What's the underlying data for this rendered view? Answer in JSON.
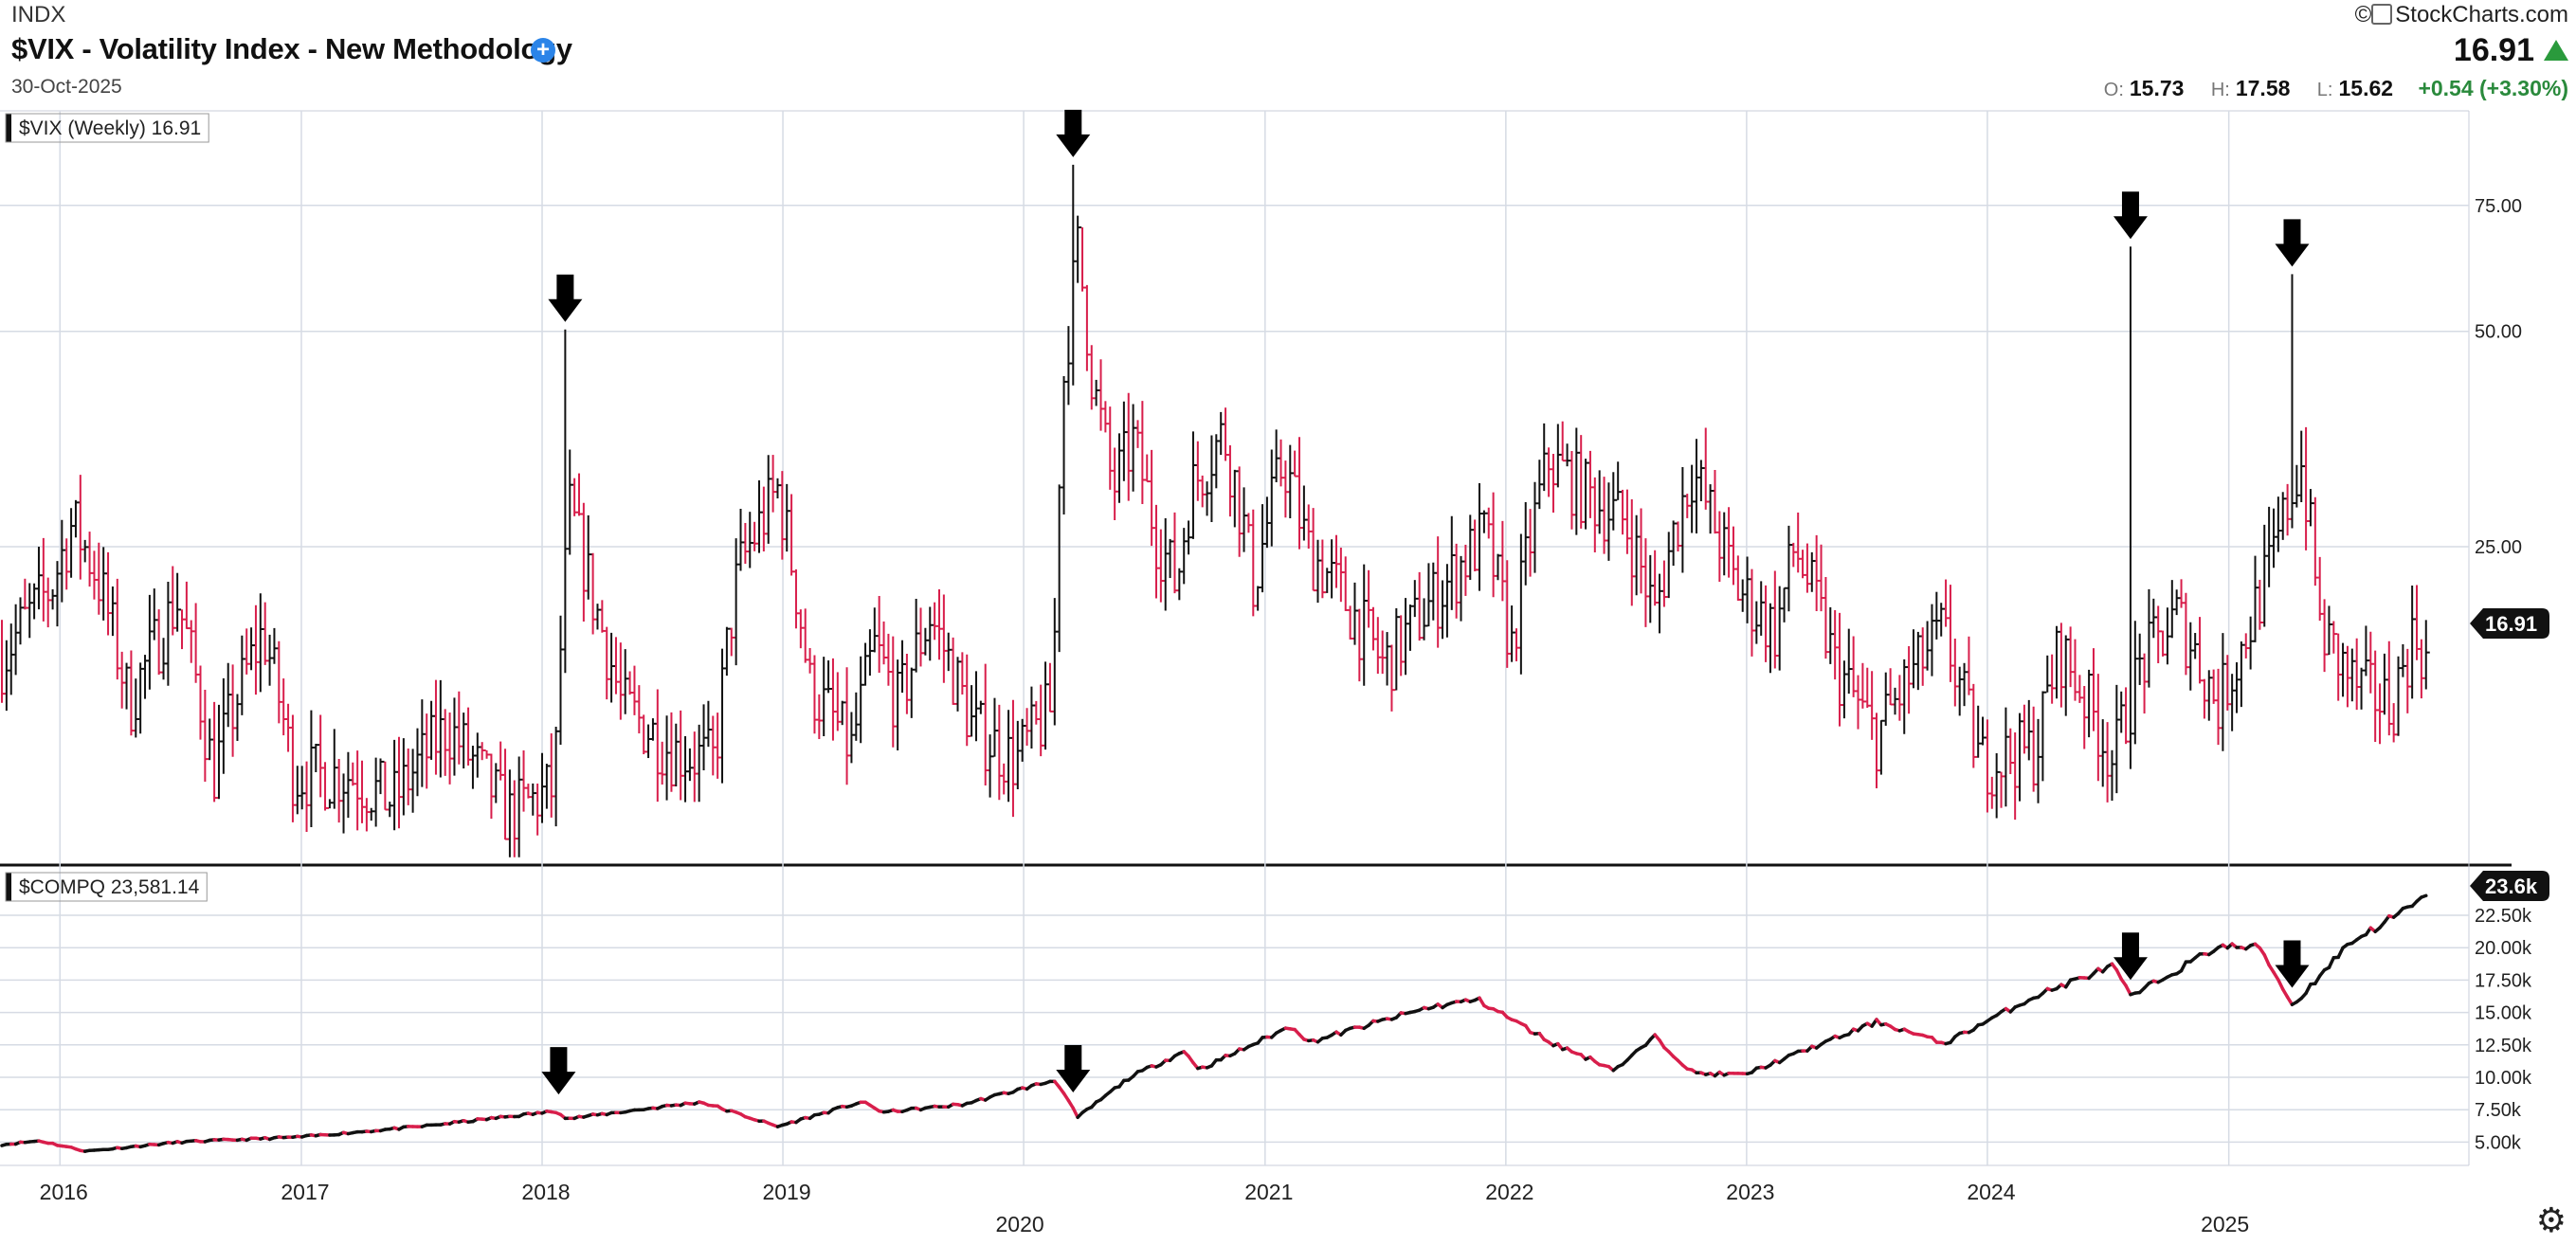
{
  "header": {
    "exchange": "INDX",
    "title": "$VIX - Volatility Index - New Methodology",
    "plus_icon": "plus-circle-icon",
    "date": "30-Oct-2025",
    "brand": "StockCharts.com",
    "last_price": "16.91",
    "open_label": "O:",
    "open": "15.73",
    "high_label": "H:",
    "high": "17.58",
    "low_label": "L:",
    "low": "15.62",
    "change": "+0.54 (+3.30%)"
  },
  "colors": {
    "up": "#111111",
    "down": "#d81e4b",
    "grid": "#d6dbe4",
    "accent_up": "#2a9a3c"
  },
  "chart_data": [
    {
      "type": "bar",
      "name": "vix-weekly-hlc",
      "legend": "$VIX (Weekly) 16.91",
      "last_label": "16.91",
      "y_scale": "log",
      "yticks": [
        25,
        50,
        75
      ],
      "ytick_labels": [
        "25.00",
        "50.00",
        "75.00"
      ],
      "ylim": [
        9,
        90
      ],
      "x_range": [
        "2015-10-05",
        "2025-12-31"
      ],
      "spikes": [
        {
          "date": "2018-02-05",
          "value": 50.3
        },
        {
          "date": "2020-03-16",
          "value": 85.5
        },
        {
          "date": "2024-08-05",
          "value": 65.7
        },
        {
          "date": "2025-04-07",
          "value": 60.1
        }
      ],
      "anchors": [
        {
          "date": "2015-10-05",
          "value": 17.5
        },
        {
          "date": "2015-11-15",
          "value": 20
        },
        {
          "date": "2015-12-20",
          "value": 22
        },
        {
          "date": "2016-01-20",
          "value": 27
        },
        {
          "date": "2016-02-25",
          "value": 23
        },
        {
          "date": "2016-04-15",
          "value": 15
        },
        {
          "date": "2016-06-27",
          "value": 21
        },
        {
          "date": "2016-08-20",
          "value": 12
        },
        {
          "date": "2016-11-04",
          "value": 19
        },
        {
          "date": "2016-12-20",
          "value": 12
        },
        {
          "date": "2017-03-15",
          "value": 12
        },
        {
          "date": "2017-05-20",
          "value": 11
        },
        {
          "date": "2017-08-10",
          "value": 14
        },
        {
          "date": "2017-11-10",
          "value": 10.5
        },
        {
          "date": "2018-01-20",
          "value": 11.5
        },
        {
          "date": "2018-02-12",
          "value": 28
        },
        {
          "date": "2018-03-20",
          "value": 21
        },
        {
          "date": "2018-05-01",
          "value": 15
        },
        {
          "date": "2018-07-15",
          "value": 13
        },
        {
          "date": "2018-09-20",
          "value": 12.5
        },
        {
          "date": "2018-10-25",
          "value": 23
        },
        {
          "date": "2018-12-24",
          "value": 30
        },
        {
          "date": "2019-02-10",
          "value": 16
        },
        {
          "date": "2019-04-15",
          "value": 13
        },
        {
          "date": "2019-05-20",
          "value": 18
        },
        {
          "date": "2019-06-25",
          "value": 15
        },
        {
          "date": "2019-08-12",
          "value": 20
        },
        {
          "date": "2019-10-15",
          "value": 14
        },
        {
          "date": "2019-12-20",
          "value": 12.5
        },
        {
          "date": "2020-02-15",
          "value": 15
        },
        {
          "date": "2020-02-28",
          "value": 40
        },
        {
          "date": "2020-03-23",
          "value": 65
        },
        {
          "date": "2020-04-15",
          "value": 42
        },
        {
          "date": "2020-05-15",
          "value": 30
        },
        {
          "date": "2020-06-15",
          "value": 35
        },
        {
          "date": "2020-07-20",
          "value": 26
        },
        {
          "date": "2020-08-20",
          "value": 22
        },
        {
          "date": "2020-09-10",
          "value": 30
        },
        {
          "date": "2020-10-30",
          "value": 36
        },
        {
          "date": "2020-12-15",
          "value": 22
        },
        {
          "date": "2021-01-29",
          "value": 33
        },
        {
          "date": "2021-03-05",
          "value": 25
        },
        {
          "date": "2021-06-30",
          "value": 17
        },
        {
          "date": "2021-09-30",
          "value": 22
        },
        {
          "date": "2021-11-30",
          "value": 26
        },
        {
          "date": "2022-01-10",
          "value": 18
        },
        {
          "date": "2022-03-07",
          "value": 33
        },
        {
          "date": "2022-05-15",
          "value": 29
        },
        {
          "date": "2022-07-01",
          "value": 27
        },
        {
          "date": "2022-08-15",
          "value": 20
        },
        {
          "date": "2022-10-10",
          "value": 32
        },
        {
          "date": "2022-12-15",
          "value": 22
        },
        {
          "date": "2023-02-15",
          "value": 19
        },
        {
          "date": "2023-03-15",
          "value": 25
        },
        {
          "date": "2023-05-15",
          "value": 17
        },
        {
          "date": "2023-07-15",
          "value": 13.5
        },
        {
          "date": "2023-10-25",
          "value": 19
        },
        {
          "date": "2023-12-20",
          "value": 12.5
        },
        {
          "date": "2024-03-15",
          "value": 13
        },
        {
          "date": "2024-04-19",
          "value": 18
        },
        {
          "date": "2024-07-10",
          "value": 12.5
        },
        {
          "date": "2024-08-20",
          "value": 17
        },
        {
          "date": "2024-10-15",
          "value": 20
        },
        {
          "date": "2024-12-15",
          "value": 15
        },
        {
          "date": "2025-01-20",
          "value": 18
        },
        {
          "date": "2025-03-10",
          "value": 24
        },
        {
          "date": "2025-04-20",
          "value": 33
        },
        {
          "date": "2025-05-20",
          "value": 19
        },
        {
          "date": "2025-07-10",
          "value": 16
        },
        {
          "date": "2025-09-05",
          "value": 15
        },
        {
          "date": "2025-10-10",
          "value": 19
        },
        {
          "date": "2025-10-31",
          "value": 16.9
        }
      ]
    },
    {
      "type": "line",
      "name": "compq-weekly-close",
      "legend": "$COMPQ 23,581.14",
      "last_label": "23.6k",
      "yticks": [
        5000,
        7500,
        10000,
        12500,
        15000,
        17500,
        20000,
        22500
      ],
      "ytick_labels": [
        "5.00k",
        "7.50k",
        "10.00k",
        "12.50k",
        "15.00k",
        "17.50k",
        "20.00k",
        "22.50k"
      ],
      "ylim": [
        3200,
        25500
      ],
      "x_range": [
        "2015-10-05",
        "2025-12-31"
      ],
      "anchors": [
        {
          "date": "2015-10-05",
          "value": 4800
        },
        {
          "date": "2015-12-01",
          "value": 5100
        },
        {
          "date": "2016-02-10",
          "value": 4300
        },
        {
          "date": "2016-07-01",
          "value": 5000
        },
        {
          "date": "2017-01-01",
          "value": 5400
        },
        {
          "date": "2017-07-01",
          "value": 6200
        },
        {
          "date": "2018-01-25",
          "value": 7400
        },
        {
          "date": "2018-02-08",
          "value": 6800
        },
        {
          "date": "2018-08-30",
          "value": 8100
        },
        {
          "date": "2018-12-24",
          "value": 6200
        },
        {
          "date": "2019-04-30",
          "value": 8100
        },
        {
          "date": "2019-06-03",
          "value": 7300
        },
        {
          "date": "2019-10-01",
          "value": 7900
        },
        {
          "date": "2020-02-19",
          "value": 9800
        },
        {
          "date": "2020-03-23",
          "value": 6900
        },
        {
          "date": "2020-06-10",
          "value": 10000
        },
        {
          "date": "2020-09-01",
          "value": 12000
        },
        {
          "date": "2020-09-24",
          "value": 10600
        },
        {
          "date": "2021-02-12",
          "value": 14000
        },
        {
          "date": "2021-03-08",
          "value": 12700
        },
        {
          "date": "2021-09-07",
          "value": 15400
        },
        {
          "date": "2021-11-19",
          "value": 16000
        },
        {
          "date": "2022-03-14",
          "value": 12600
        },
        {
          "date": "2022-06-16",
          "value": 10600
        },
        {
          "date": "2022-08-15",
          "value": 13100
        },
        {
          "date": "2022-10-13",
          "value": 10300
        },
        {
          "date": "2022-12-28",
          "value": 10200
        },
        {
          "date": "2023-07-19",
          "value": 14300
        },
        {
          "date": "2023-10-27",
          "value": 12600
        },
        {
          "date": "2024-03-15",
          "value": 16300
        },
        {
          "date": "2024-07-10",
          "value": 18600
        },
        {
          "date": "2024-08-05",
          "value": 16200
        },
        {
          "date": "2024-12-16",
          "value": 20100
        },
        {
          "date": "2025-02-18",
          "value": 20000
        },
        {
          "date": "2025-04-08",
          "value": 15500
        },
        {
          "date": "2025-07-01",
          "value": 20300
        },
        {
          "date": "2025-10-29",
          "value": 23900
        },
        {
          "date": "2025-10-31",
          "value": 23581
        }
      ]
    }
  ],
  "x_axis": {
    "year_labels": [
      "2016",
      "2017",
      "2018",
      "2019",
      "2021",
      "2022",
      "2023",
      "2024"
    ],
    "year_dates": [
      "2016-01-01",
      "2017-01-01",
      "2018-01-01",
      "2019-01-01",
      "2021-01-01",
      "2022-01-01",
      "2023-01-01",
      "2024-01-01"
    ],
    "major_labels": [
      "2020",
      "2025"
    ],
    "major_dates": [
      "2020-01-01",
      "2025-01-01"
    ]
  },
  "arrows": {
    "vix_dates": [
      "2018-02-05",
      "2020-03-16",
      "2024-08-05",
      "2025-04-07"
    ],
    "compq_dates": [
      "2018-01-26",
      "2020-03-16",
      "2024-08-05",
      "2025-04-07"
    ],
    "icon": "down-arrow-icon"
  },
  "settings_icon": "gear-icon"
}
